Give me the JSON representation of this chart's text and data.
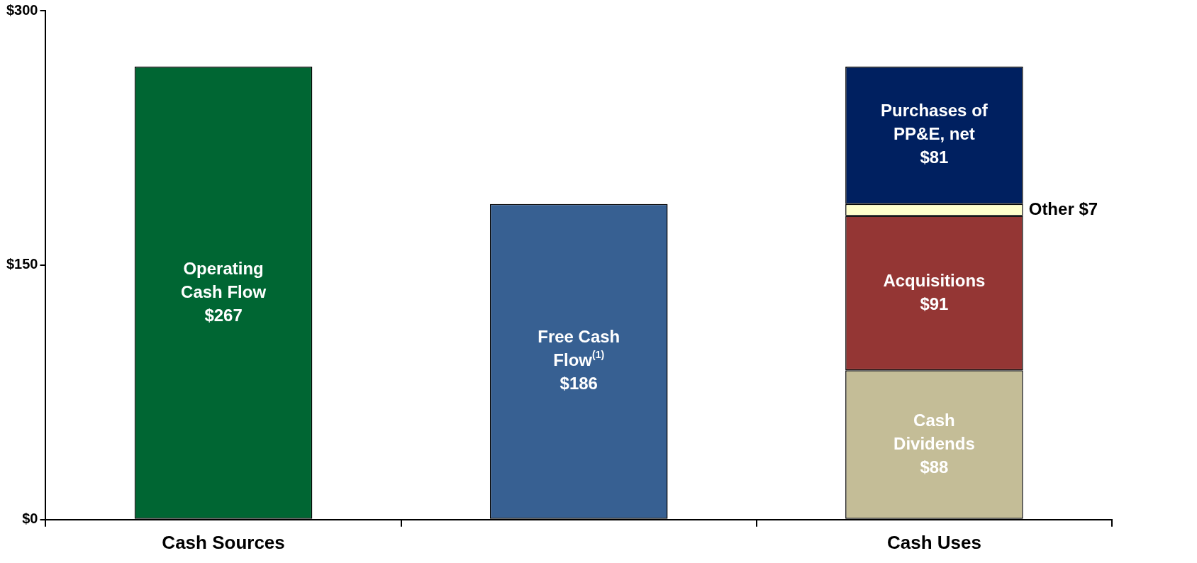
{
  "chart_data": {
    "type": "bar",
    "stacked": true,
    "categories": [
      "Cash Sources",
      null,
      "Cash Uses"
    ],
    "series": [
      {
        "name": "Operating Cash Flow",
        "color": "#006633",
        "values": [
          267,
          null,
          null
        ],
        "value_labels": [
          "$267",
          null,
          null
        ]
      },
      {
        "name": "Free Cash Flow$^{(1)}$",
        "color": "#376092",
        "values": [
          null,
          186,
          null
        ],
        "value_labels": [
          null,
          "$186",
          null
        ]
      },
      {
        "name": "Cash Dividends",
        "color": "#c4bd97",
        "values": [
          null,
          null,
          88
        ],
        "value_labels": [
          null,
          null,
          "$88"
        ]
      },
      {
        "name": "Acquisitions",
        "color": "#943634",
        "values": [
          null,
          null,
          91
        ],
        "value_labels": [
          null,
          null,
          "$91"
        ]
      },
      {
        "name": "Other",
        "color": "#ffffcc",
        "values": [
          null,
          null,
          7
        ],
        "value_labels": [
          null,
          null,
          "$7"
        ]
      },
      {
        "name": "Purchases of PP&E, net",
        "color": "#002060",
        "values": [
          null,
          null,
          81
        ],
        "value_labels": [
          null,
          null,
          "$81"
        ]
      }
    ],
    "ylim": [
      0,
      300
    ],
    "yticks": [
      {
        "value": 0,
        "label": "$0"
      },
      {
        "value": 150,
        "label": "$150"
      },
      {
        "value": 300,
        "label": "$300"
      }
    ],
    "grid": false,
    "legend": false
  }
}
